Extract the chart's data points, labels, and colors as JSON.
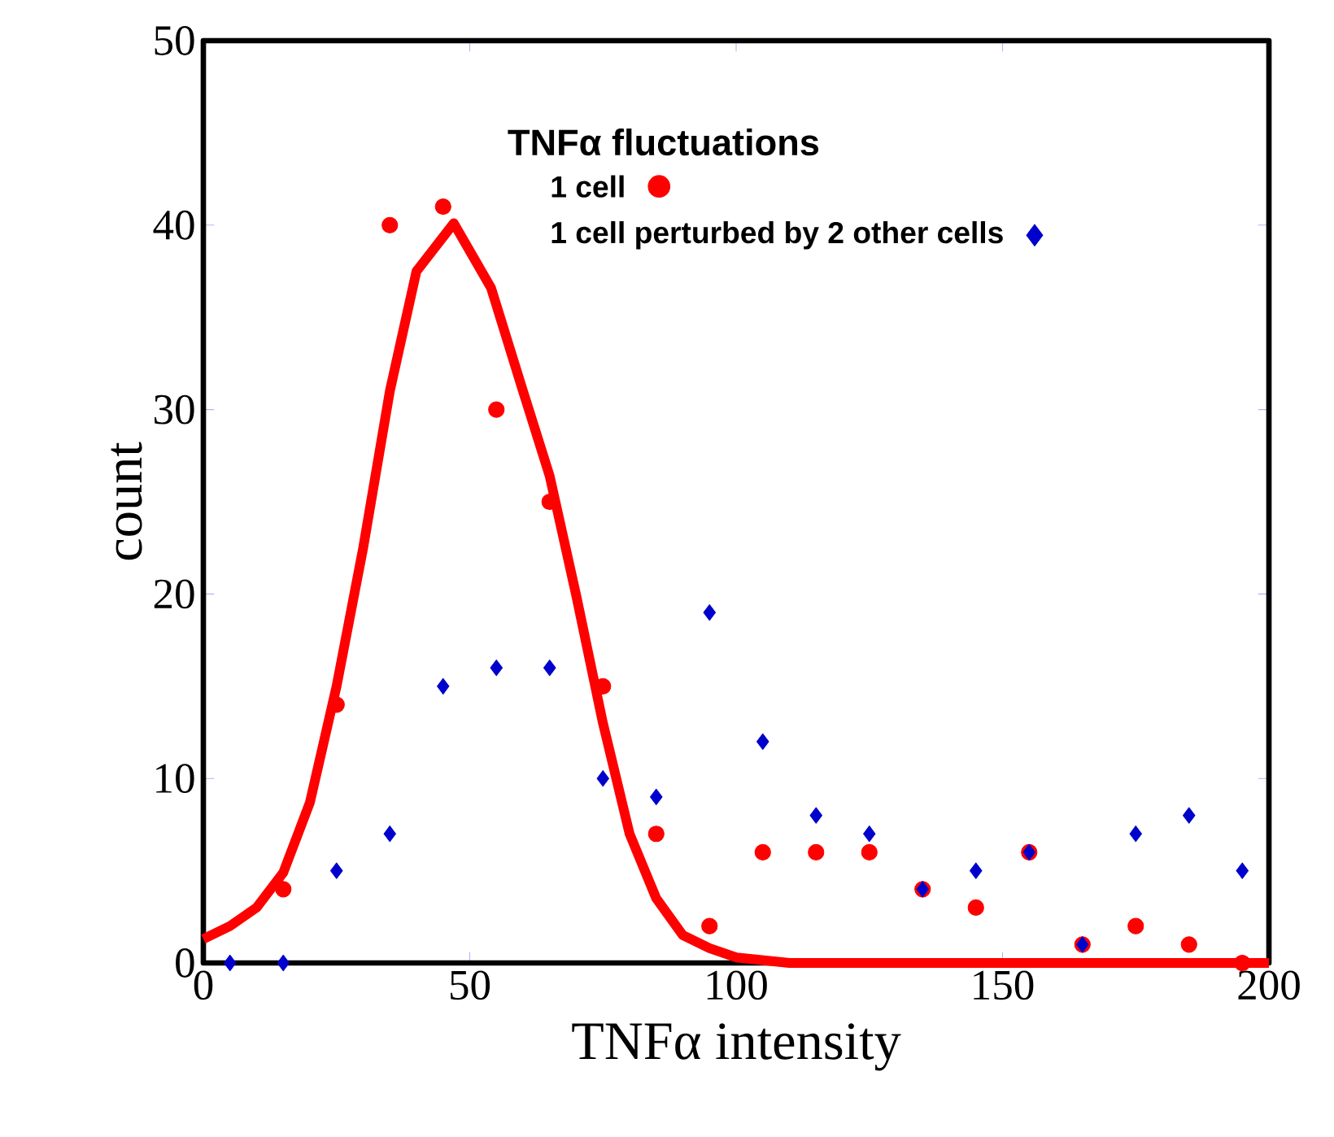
{
  "chart_data": {
    "type": "scatter",
    "xlabel": "TNFα intensity",
    "ylabel": "count",
    "legend_title": "TNFα fluctuations",
    "legend": "top right",
    "xlim": [
      0,
      200
    ],
    "ylim": [
      0,
      50
    ],
    "xticks": [
      0,
      50,
      100,
      150,
      200
    ],
    "yticks": [
      0,
      10,
      20,
      30,
      40,
      50
    ],
    "grid": false,
    "series": [
      {
        "name": "1 cell",
        "color": "#ff0000",
        "marker": "circle",
        "x": [
          15,
          25,
          35,
          45,
          55,
          65,
          75,
          85,
          95,
          105,
          115,
          125,
          135,
          145,
          155,
          165,
          175,
          185,
          195
        ],
        "values": [
          4,
          14,
          40,
          41,
          30,
          25,
          15,
          7,
          2,
          6,
          6,
          6,
          4,
          3,
          6,
          1,
          2,
          1,
          0
        ]
      },
      {
        "type": "line",
        "color": "#ff0000",
        "marker": "none",
        "line_style": "solid",
        "x": [
          0,
          5,
          10,
          15,
          20,
          25,
          30,
          35,
          40,
          47,
          54,
          60,
          65,
          70,
          75,
          80,
          85,
          90,
          95,
          100,
          110,
          200
        ],
        "values": [
          1.3,
          2,
          3,
          4.9,
          8.7,
          15,
          22.5,
          31,
          37.5,
          40.1,
          36.6,
          31,
          26.4,
          19.9,
          13,
          7,
          3.5,
          1.5,
          0.8,
          0.3,
          0,
          0
        ]
      },
      {
        "name": "1 cell perturbed by 2 other cells",
        "color": "#0000cc",
        "marker": "diamond",
        "x": [
          5,
          15,
          25,
          35,
          45,
          55,
          65,
          75,
          85,
          95,
          105,
          115,
          125,
          135,
          145,
          155,
          165,
          175,
          185,
          195
        ],
        "values": [
          0,
          0,
          5,
          7,
          15,
          16,
          16,
          10,
          9,
          19,
          12,
          8,
          7,
          4,
          5,
          6,
          1,
          7,
          8,
          5
        ]
      }
    ]
  }
}
